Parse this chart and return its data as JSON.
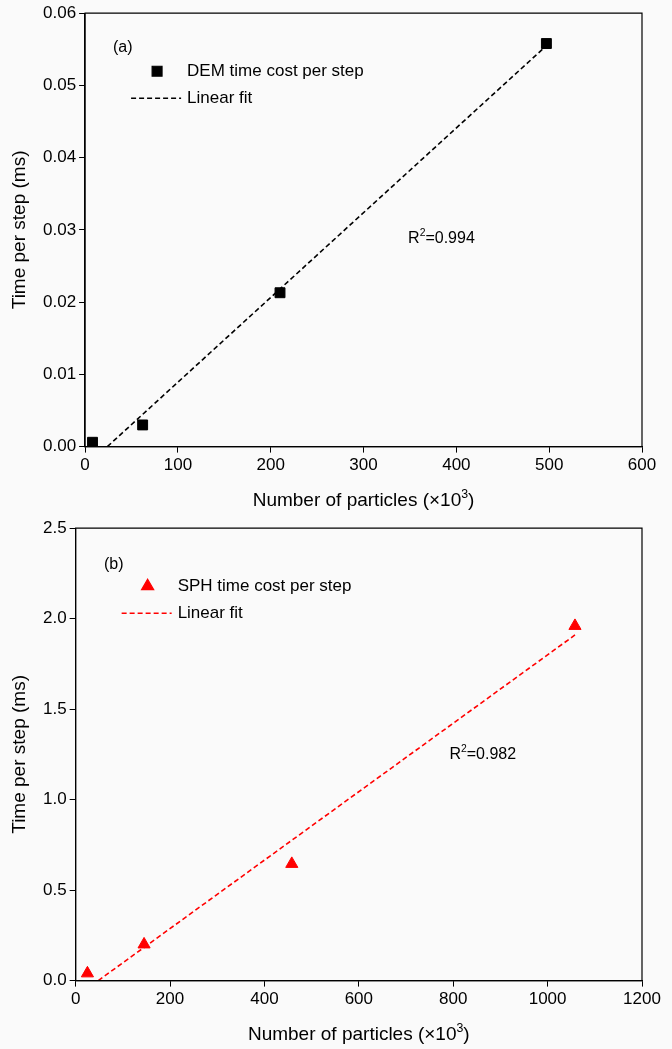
{
  "chart_data": [
    {
      "type": "scatter",
      "xlabel": "Number of particles (×10$^{3}$)",
      "ylabel": "Time per step (ms)",
      "line_style": "dashed",
      "legend": "top left",
      "xlim": [
        0,
        600
      ],
      "xticks": [
        0,
        100,
        200,
        300,
        400,
        500,
        600
      ],
      "ylim": [
        0,
        0.06
      ],
      "yticks": [
        {
          "value": 0,
          "label": "0.00"
        },
        0.01,
        0.02,
        0.03,
        0.04,
        0.05,
        0.06
      ],
      "annotations": [
        "(a)",
        "R$^{2}$=0.994"
      ],
      "series": [
        {
          "name": "DEM time cost per step",
          "marker": "square",
          "color": "#000000",
          "x": [
            8,
            62,
            210,
            497
          ],
          "values": [
            0.0006,
            0.003,
            0.0213,
            0.0558
          ]
        },
        {
          "name": "Linear fit",
          "type": "line",
          "color": "#000000",
          "x": [
            24,
            497
          ],
          "values": [
            0,
            0.0555
          ]
        }
      ]
    },
    {
      "type": "scatter",
      "xlabel": "Number of particles (×10$^{3}$)",
      "ylabel": "Time per step (ms)",
      "line_style": "dashed",
      "legend": "top left",
      "xlim": [
        0,
        1200
      ],
      "xticks": [
        0,
        200,
        400,
        600,
        800,
        1000,
        1200
      ],
      "ylim": [
        0,
        2.5
      ],
      "yticks": [
        {
          "value": 0,
          "label": "0.0"
        },
        0.5,
        {
          "value": 1,
          "label": "1.0"
        },
        1.5,
        {
          "value": 2,
          "label": "2.0"
        },
        2.5
      ],
      "annotations": [
        "(b)",
        "R$^{2}$=0.982"
      ],
      "series": [
        {
          "name": "SPH time cost per step",
          "marker": "triangle",
          "color": "#ff0000",
          "x": [
            25,
            145,
            458,
            1058
          ],
          "values": [
            0.04,
            0.2,
            0.645,
            1.96
          ]
        },
        {
          "name": "Linear fit",
          "type": "line",
          "color": "#ff0000",
          "x": [
            48,
            1058
          ],
          "values": [
            0,
            1.91
          ]
        }
      ]
    }
  ]
}
